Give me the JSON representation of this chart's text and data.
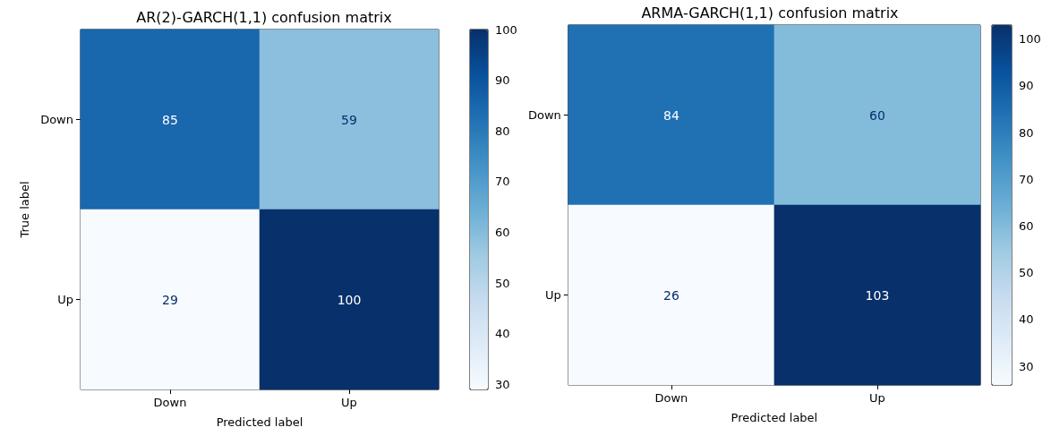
{
  "chart_data": [
    {
      "type": "heatmap",
      "title": "AR(2)-GARCH(1,1) confusion matrix",
      "xlabel": "Predicted label",
      "ylabel": "True label",
      "categories": [
        "Down",
        "Up"
      ],
      "y_categories": [
        "Down",
        "Up"
      ],
      "cells": [
        [
          85,
          59
        ],
        [
          29,
          100
        ]
      ],
      "data_labels": true,
      "clim": [
        29,
        100
      ],
      "cticks": [
        30,
        40,
        50,
        60,
        70,
        80,
        90,
        100
      ]
    },
    {
      "type": "heatmap",
      "title": "ARMA-GARCH(1,1) confusion matrix",
      "xlabel": "Predicted label",
      "categories": [
        "Down",
        "Up"
      ],
      "y_categories": [
        "Down",
        "Up"
      ],
      "cells": [
        [
          84,
          60
        ],
        [
          26,
          103
        ]
      ],
      "data_labels": true,
      "clim": [
        26,
        103
      ],
      "cticks": [
        30,
        40,
        50,
        60,
        70,
        80,
        90,
        100
      ]
    }
  ]
}
